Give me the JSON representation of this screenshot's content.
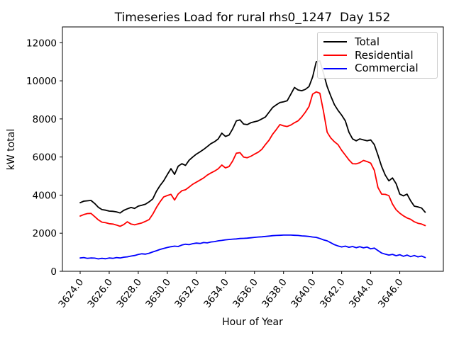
{
  "chart_data": {
    "type": "line",
    "title": "Timeseries Load for rural rhs0_1247  Day 152",
    "xlabel": "Hour of Year",
    "ylabel": "kW total",
    "grid": false,
    "legend_position": "upper right",
    "legend_border_color": "#cccccc",
    "background_color": "#ffffff",
    "xlim": [
      3622.78,
      3649.0
    ],
    "ylim": [
      0,
      12830
    ],
    "x_start": 3624.0,
    "x_step": 0.25,
    "x_tick_values": [
      3624,
      3626,
      3628,
      3630,
      3632,
      3634,
      3636,
      3638,
      3640,
      3642,
      3644,
      3646
    ],
    "x_tick_labels": [
      "3624.0",
      "3626.0",
      "3628.0",
      "3630.0",
      "3632.0",
      "3634.0",
      "3636.0",
      "3638.0",
      "3640.0",
      "3642.0",
      "3644.0",
      "3646.0"
    ],
    "y_tick_values": [
      0,
      2000,
      4000,
      6000,
      8000,
      10000,
      12000
    ],
    "y_tick_labels": [
      "0",
      "2000",
      "4000",
      "6000",
      "8000",
      "10000",
      "12000"
    ],
    "series": [
      {
        "name": "Total",
        "color": "#000000",
        "values": [
          3600,
          3680,
          3700,
          3720,
          3560,
          3360,
          3240,
          3210,
          3160,
          3150,
          3120,
          3060,
          3200,
          3280,
          3350,
          3300,
          3420,
          3470,
          3520,
          3650,
          3800,
          4200,
          4500,
          4750,
          5080,
          5390,
          5090,
          5520,
          5650,
          5560,
          5830,
          6000,
          6150,
          6270,
          6400,
          6550,
          6700,
          6800,
          6950,
          7250,
          7080,
          7150,
          7480,
          7900,
          7950,
          7730,
          7700,
          7800,
          7850,
          7900,
          8000,
          8100,
          8350,
          8600,
          8740,
          8860,
          8900,
          8950,
          9300,
          9650,
          9520,
          9480,
          9550,
          9700,
          10200,
          11000,
          11050,
          10400,
          9700,
          9200,
          8750,
          8450,
          8200,
          7900,
          7300,
          6950,
          6850,
          6950,
          6900,
          6850,
          6900,
          6650,
          6100,
          5500,
          5050,
          4750,
          4900,
          4600,
          4050,
          3960,
          4050,
          3700,
          3420,
          3380,
          3320,
          3100
        ]
      },
      {
        "name": "Residential",
        "color": "#ff0000",
        "values": [
          2900,
          2980,
          3030,
          3040,
          2870,
          2700,
          2580,
          2550,
          2500,
          2480,
          2430,
          2360,
          2450,
          2600,
          2480,
          2440,
          2490,
          2540,
          2620,
          2720,
          3000,
          3350,
          3650,
          3900,
          3980,
          4040,
          3740,
          4060,
          4230,
          4280,
          4420,
          4570,
          4680,
          4790,
          4900,
          5050,
          5160,
          5260,
          5380,
          5580,
          5430,
          5500,
          5790,
          6200,
          6230,
          6000,
          5960,
          6040,
          6150,
          6250,
          6400,
          6650,
          6880,
          7200,
          7440,
          7700,
          7640,
          7600,
          7680,
          7800,
          7900,
          8100,
          8350,
          8650,
          9300,
          9420,
          9350,
          8400,
          7300,
          7000,
          6800,
          6650,
          6350,
          6100,
          5850,
          5650,
          5640,
          5700,
          5820,
          5760,
          5680,
          5300,
          4400,
          4050,
          4040,
          3970,
          3530,
          3230,
          3050,
          2910,
          2800,
          2730,
          2600,
          2520,
          2480,
          2400
        ]
      },
      {
        "name": "Commercial",
        "color": "#0000ff",
        "values": [
          700,
          720,
          680,
          700,
          690,
          650,
          680,
          660,
          700,
          680,
          720,
          700,
          740,
          760,
          800,
          830,
          880,
          920,
          900,
          950,
          1020,
          1080,
          1150,
          1200,
          1250,
          1290,
          1320,
          1300,
          1380,
          1420,
          1400,
          1450,
          1480,
          1460,
          1510,
          1490,
          1540,
          1560,
          1600,
          1620,
          1650,
          1670,
          1690,
          1700,
          1720,
          1730,
          1740,
          1760,
          1780,
          1800,
          1810,
          1830,
          1850,
          1870,
          1880,
          1890,
          1900,
          1900,
          1900,
          1890,
          1880,
          1860,
          1850,
          1830,
          1800,
          1780,
          1720,
          1650,
          1600,
          1500,
          1400,
          1330,
          1280,
          1320,
          1260,
          1300,
          1240,
          1290,
          1230,
          1270,
          1180,
          1220,
          1090,
          960,
          900,
          850,
          890,
          820,
          870,
          790,
          850,
          770,
          830,
          760,
          800,
          720
        ]
      }
    ]
  }
}
